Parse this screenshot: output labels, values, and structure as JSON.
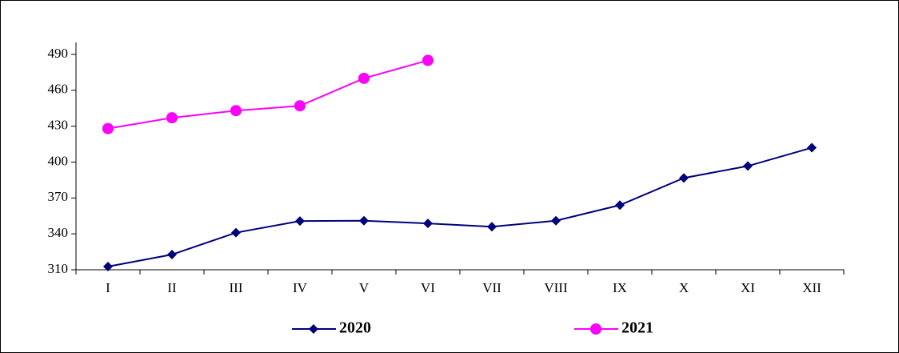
{
  "chart_data": {
    "type": "line",
    "categories": [
      "I",
      "II",
      "III",
      "IV",
      "V",
      "VI",
      "VII",
      "VIII",
      "IX",
      "X",
      "XI",
      "XII"
    ],
    "series": [
      {
        "name": "2020",
        "color": "#000080",
        "marker": "diamond",
        "values": [
          312.7,
          322.7,
          341,
          350.7,
          351,
          348.7,
          346,
          351,
          364,
          386.7,
          396.7,
          412
        ]
      },
      {
        "name": "2021",
        "color": "#ff00ff",
        "marker": "circle",
        "values": [
          428,
          437,
          443,
          447,
          470,
          485,
          null,
          null,
          null,
          null,
          null,
          null
        ]
      }
    ],
    "ylim": [
      310,
      500
    ],
    "yticks": [
      310,
      340,
      370,
      400,
      430,
      460,
      490
    ]
  }
}
